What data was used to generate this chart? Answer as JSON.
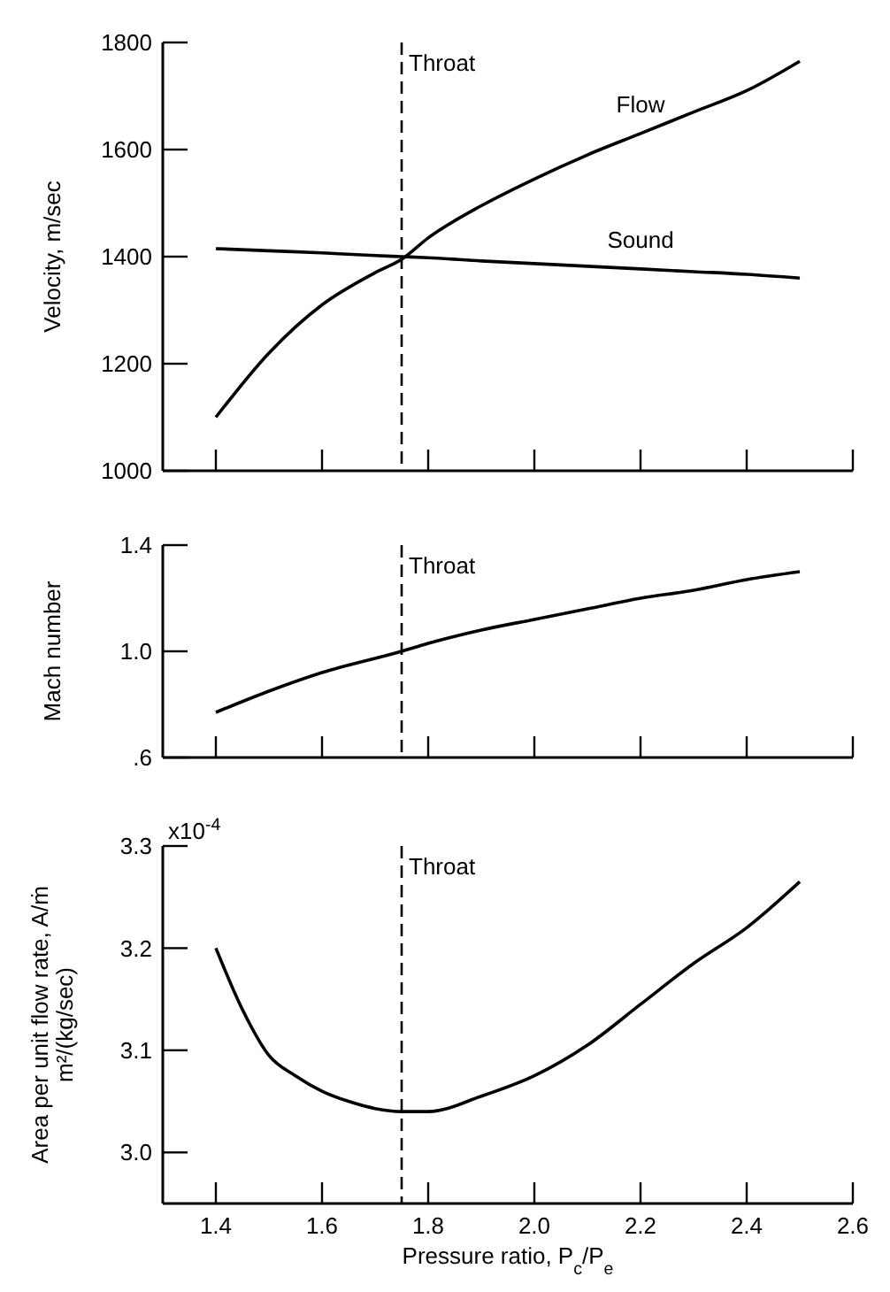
{
  "chart_data": [
    {
      "type": "line",
      "ylabel": "Velocity, m/sec",
      "x": [
        1.4,
        1.5,
        1.6,
        1.7,
        1.75,
        1.8,
        1.9,
        2.0,
        2.1,
        2.2,
        2.3,
        2.4,
        2.5
      ],
      "series": [
        {
          "name": "Flow",
          "color": "#000000",
          "values": [
            1100,
            1220,
            1310,
            1370,
            1395,
            1435,
            1495,
            1545,
            1590,
            1630,
            1670,
            1710,
            1765
          ]
        },
        {
          "name": "Sound",
          "color": "#000000",
          "values": [
            1415,
            1411,
            1407,
            1402,
            1400,
            1398,
            1392,
            1387,
            1382,
            1377,
            1372,
            1367,
            1360
          ]
        }
      ],
      "xlim": [
        1.3,
        2.6
      ],
      "xticks": [
        1.4,
        1.6,
        1.8,
        2.0,
        2.2,
        2.4,
        2.6
      ],
      "ylim": [
        1000,
        1800
      ],
      "yticks": [
        1000,
        1200,
        1400,
        1600,
        1800
      ],
      "tick_labels": "y",
      "marker": "none",
      "line_style": "solid",
      "ref_lines": [
        {
          "axis": "x",
          "value": 1.75,
          "label": "Throat",
          "line_style": "dashed",
          "color": "#000000"
        }
      ]
    },
    {
      "type": "line",
      "ylabel": "Mach number",
      "x": [
        1.4,
        1.5,
        1.6,
        1.75,
        1.8,
        1.9,
        2.0,
        2.1,
        2.2,
        2.3,
        2.4,
        2.5
      ],
      "series": [
        {
          "color": "#000000",
          "values": [
            0.77,
            0.85,
            0.92,
            1.0,
            1.03,
            1.08,
            1.12,
            1.16,
            1.2,
            1.23,
            1.27,
            1.3
          ]
        }
      ],
      "xlim": [
        1.3,
        2.6
      ],
      "xticks": [
        1.4,
        1.6,
        1.8,
        2.0,
        2.2,
        2.4,
        2.6
      ],
      "ylim": [
        0.6,
        1.4
      ],
      "yticks": [
        {
          "value": 0.6,
          "label": ".6"
        },
        {
          "value": 1,
          "label": "1.0"
        },
        1.4
      ],
      "tick_labels": "y",
      "marker": "none",
      "line_style": "solid",
      "ref_lines": [
        {
          "axis": "x",
          "value": 1.75,
          "label": "Throat",
          "line_style": "dashed",
          "color": "#000000"
        }
      ]
    },
    {
      "type": "line",
      "ylabel": "Area per unit flow rate, A/ṁ\nm²/(kg/sec)",
      "xlabel": "Pressure ratio, P$_{c}$/P$_{e}$",
      "annotations": [
        "x10$^{-4}$"
      ],
      "x": [
        1.4,
        1.45,
        1.5,
        1.55,
        1.6,
        1.65,
        1.7,
        1.75,
        1.8,
        1.9,
        2.0,
        2.1,
        2.2,
        2.3,
        2.4,
        2.5
      ],
      "series": [
        {
          "color": "#000000",
          "values": [
            3.2,
            3.14,
            3.095,
            3.075,
            3.06,
            3.05,
            3.043,
            3.04,
            3.04,
            3.055,
            3.075,
            3.105,
            3.145,
            3.185,
            3.22,
            3.265
          ]
        }
      ],
      "xlim": [
        1.3,
        2.6
      ],
      "xticks": [
        1.4,
        1.6,
        1.8,
        {
          "value": 2,
          "label": "2.0"
        },
        2.2,
        2.4,
        2.6
      ],
      "ylim": [
        2.95,
        3.3
      ],
      "yticks": [
        {
          "value": 3,
          "label": "3.0"
        },
        3.1,
        3.2,
        3.3
      ],
      "marker": "none",
      "line_style": "solid",
      "ref_lines": [
        {
          "axis": "x",
          "value": 1.75,
          "label": "Throat",
          "line_style": "dashed",
          "color": "#000000"
        }
      ]
    }
  ]
}
